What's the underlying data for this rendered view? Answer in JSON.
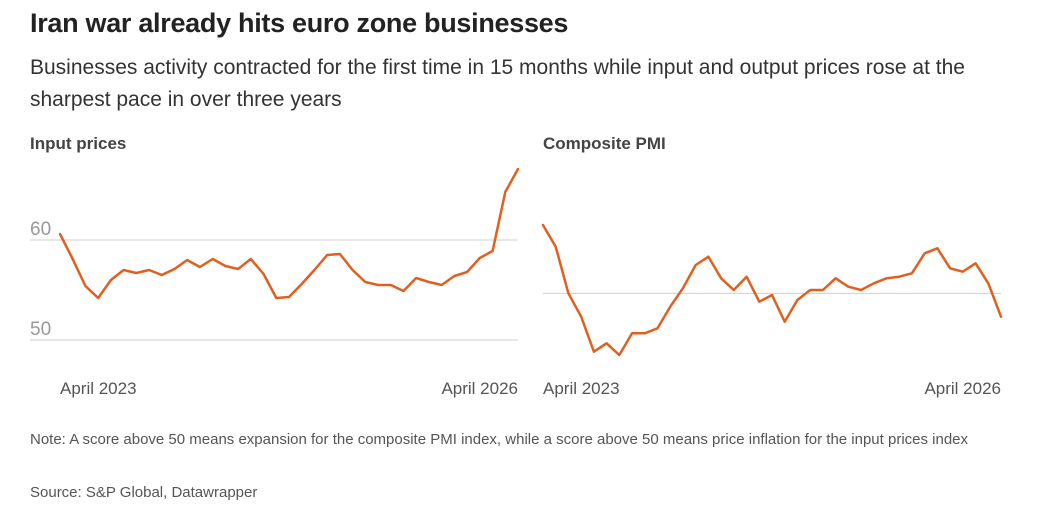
{
  "header": {
    "title": "Iran war already hits euro zone businesses",
    "subtitle": "Businesses activity contracted for the first time in 15 months while input and output prices rose at the sharpest pace in over three years"
  },
  "colors": {
    "line": "#e0601f",
    "grid": "#d0d0d0"
  },
  "chart_data": [
    {
      "type": "line",
      "title": "Input prices",
      "x_ticks": [
        "April 2023",
        "April 2026"
      ],
      "y_ticks": [
        50,
        60
      ],
      "ylim": [
        48,
        68
      ],
      "grid": true,
      "series": [
        {
          "values": [
            60.6,
            58.1,
            55.4,
            54.2,
            56.0,
            57.0,
            56.7,
            57.0,
            56.5,
            57.1,
            58.0,
            57.3,
            58.1,
            57.4,
            57.1,
            58.1,
            56.6,
            54.2,
            54.3,
            55.6,
            57.0,
            58.5,
            58.6,
            57.0,
            55.8,
            55.5,
            55.5,
            54.9,
            56.2,
            55.8,
            55.5,
            56.4,
            56.8,
            58.2,
            58.9,
            64.8,
            67.1
          ]
        }
      ]
    },
    {
      "type": "line",
      "title": "Composite PMI",
      "x_ticks": [
        "April 2023",
        "April 2026"
      ],
      "y_ticks": [
        50
      ],
      "ylim": [
        46,
        58
      ],
      "grid": true,
      "series": [
        {
          "values": [
            54.1,
            52.8,
            50.0,
            48.6,
            46.5,
            47.0,
            46.3,
            47.6,
            47.6,
            47.9,
            49.2,
            50.3,
            51.7,
            52.2,
            50.9,
            50.2,
            51.0,
            49.5,
            49.9,
            48.3,
            49.6,
            50.2,
            50.2,
            50.9,
            50.4,
            50.2,
            50.6,
            50.9,
            51.0,
            51.2,
            52.4,
            52.7,
            51.5,
            51.3,
            51.8,
            50.6,
            48.6
          ]
        }
      ]
    }
  ],
  "footer": {
    "note": "Note: A score above 50 means expansion for the composite PMI index, while a score above 50 means price inflation for the input prices index",
    "source": "Source: S&P Global, Datawrapper"
  }
}
